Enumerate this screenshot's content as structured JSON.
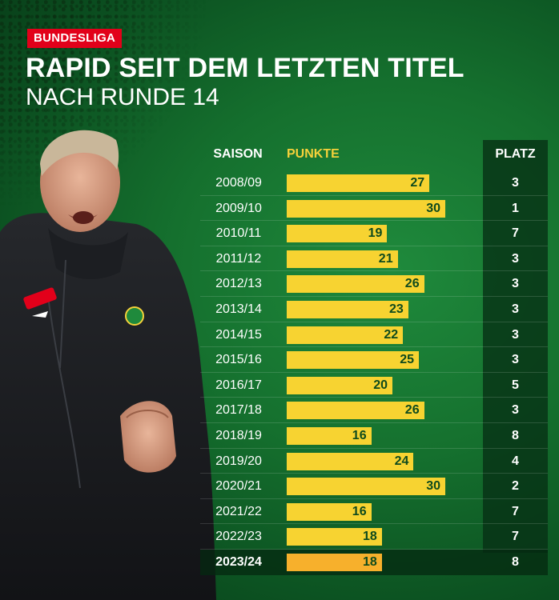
{
  "header": {
    "tag": "BUNDESLIGA",
    "title": "RAPID SEIT DEM LETZTEN TITEL",
    "subtitle": "NACH RUNDE 14"
  },
  "colors": {
    "bar": "#f7d331",
    "bar_current": "#f7b02c",
    "tag": "#e2001a",
    "background": "#15702e"
  },
  "chart_data": {
    "type": "bar",
    "orientation": "horizontal",
    "columns": {
      "season": "SAISON",
      "points": "PUNKTE",
      "rank": "PLATZ"
    },
    "categories": [
      "2008/09",
      "2009/10",
      "2010/11",
      "2011/12",
      "2012/13",
      "2013/14",
      "2014/15",
      "2015/16",
      "2016/17",
      "2017/18",
      "2018/19",
      "2019/20",
      "2020/21",
      "2021/22",
      "2022/23",
      "2023/24"
    ],
    "values": [
      27,
      30,
      19,
      21,
      26,
      23,
      22,
      25,
      20,
      26,
      16,
      24,
      30,
      16,
      18,
      18
    ],
    "platz": [
      3,
      1,
      7,
      3,
      3,
      3,
      3,
      3,
      5,
      3,
      8,
      4,
      2,
      7,
      7,
      8
    ],
    "highlight_index": 15,
    "xlim": [
      0,
      30
    ]
  }
}
